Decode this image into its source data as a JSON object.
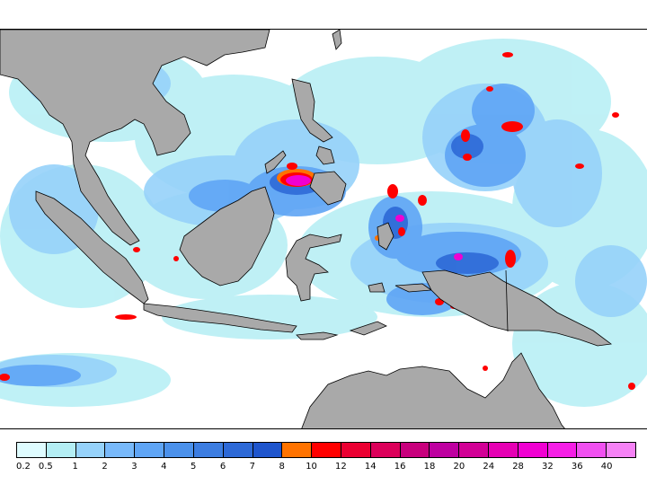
{
  "map": {
    "region": "Maritime Southeast Asia",
    "colors": {
      "land": "#a9a9a9",
      "coast": "#000000",
      "ocean": "#ffffff"
    }
  },
  "legend": {
    "labels": [
      "0.2",
      "0.5",
      "1",
      "2",
      "3",
      "4",
      "5",
      "6",
      "7",
      "8",
      "10",
      "12",
      "14",
      "16",
      "18",
      "20",
      "24",
      "28",
      "32",
      "36",
      "40"
    ],
    "colors": [
      "#dffcff",
      "#b4eef4",
      "#96d2fa",
      "#78b9fa",
      "#5fa5f5",
      "#4b91eb",
      "#3c7de1",
      "#2d69d7",
      "#1e55cd",
      "#ff7300",
      "#ff0000",
      "#eb0032",
      "#dc005a",
      "#c8007d",
      "#be00a0",
      "#d20096",
      "#e600b4",
      "#f000d2",
      "#f51ee6",
      "#f050f0",
      "#f582f5"
    ]
  }
}
